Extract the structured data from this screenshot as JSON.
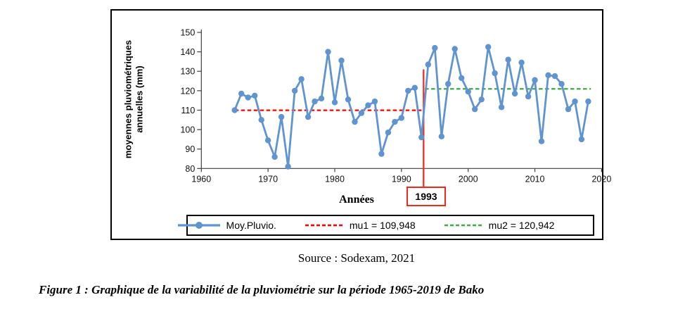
{
  "page": {
    "source_text": "Source : Sodexam, 2021",
    "caption": "Figure 1 : Graphique de la variabilité de la pluviométrie sur la période 1965-2019 de Bako"
  },
  "chart_data": {
    "type": "line",
    "title": "",
    "xlabel": "Années",
    "ylabel": "moyennes pluviométriques annuelles (mm)",
    "ylabel_lines": [
      "moyennes pluviométriques",
      "annuelles (mm)"
    ],
    "xlim": [
      1960,
      2020
    ],
    "ylim": [
      80,
      150
    ],
    "x_ticks": [
      1960,
      1970,
      1980,
      1990,
      2000,
      2010,
      2020
    ],
    "y_ticks": [
      80,
      90,
      100,
      110,
      120,
      130,
      140,
      150
    ],
    "grid": false,
    "legend_position": "bottom",
    "years": [
      1965,
      1966,
      1967,
      1968,
      1969,
      1970,
      1971,
      1972,
      1973,
      1974,
      1975,
      1976,
      1977,
      1978,
      1979,
      1980,
      1981,
      1982,
      1983,
      1984,
      1985,
      1986,
      1987,
      1988,
      1989,
      1990,
      1991,
      1992,
      1993,
      1994,
      1995,
      1996,
      1997,
      1998,
      1999,
      2000,
      2001,
      2002,
      2003,
      2004,
      2005,
      2006,
      2007,
      2008,
      2009,
      2010,
      2011,
      2012,
      2013,
      2014,
      2015,
      2016,
      2017,
      2018
    ],
    "series": [
      {
        "name": "Moy.Pluvio.",
        "type": "line+marker",
        "color": "#5f94d0",
        "values": [
          110,
          118.5,
          116.5,
          117.5,
          105,
          94.5,
          86,
          106.5,
          81,
          120,
          126,
          106.5,
          114.5,
          116,
          140,
          114,
          135.5,
          115.5,
          104,
          108.5,
          112.5,
          114.5,
          87.5,
          98.5,
          104,
          106,
          120,
          121.5,
          96,
          133.5,
          142,
          96.5,
          123.5,
          141.5,
          126.5,
          119.5,
          110.5,
          115.5,
          142.5,
          129,
          111.5,
          136,
          118.5,
          134.5,
          117,
          125.5,
          94,
          128,
          127.5,
          123.5,
          110.5,
          114.5,
          95,
          114.5
        ]
      },
      {
        "name": "mu1 = 109,948",
        "type": "dashed-hline",
        "color": "#ff0000",
        "value": 109.948,
        "span_years": [
          1965,
          1993
        ]
      },
      {
        "name": "mu2 = 120,942",
        "type": "dashed-hline",
        "color": "#3bac3e",
        "value": 120.942,
        "span_years": [
          1993.5,
          2018.4
        ]
      }
    ],
    "annotation": {
      "label": "1993",
      "year": 1993,
      "top_value": 131,
      "color": "#fb2619"
    }
  }
}
